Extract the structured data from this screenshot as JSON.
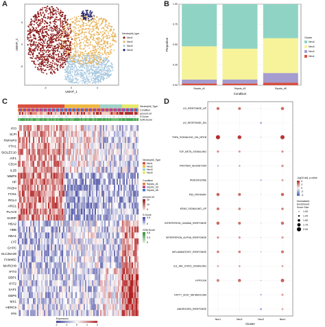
{
  "panels": {
    "a": {
      "label": "A",
      "xlabel": "UMAP_1",
      "ylabel": "UMAP_2",
      "xticks": [
        "-4",
        "0",
        "4"
      ],
      "yticks": [
        "5",
        "0",
        "-5"
      ],
      "legend_title": "Neutrophil_type",
      "legend": [
        {
          "name": "Neu1",
          "color": "#8b1a1a"
        },
        {
          "name": "Neu2",
          "color": "#e8b35a"
        },
        {
          "name": "Neu3",
          "color": "#a9c9e0"
        },
        {
          "name": "Neu4",
          "color": "#1a1a6b"
        }
      ]
    },
    "b": {
      "label": "B",
      "xlabel": "Condition",
      "ylabel": "Proportion",
      "legend_title": "Cluster",
      "chart_data": {
        "type": "bar",
        "stacked": true,
        "categories": [
          "Sepsis_d1",
          "Sepsis_d3",
          "Sepsis_d5"
        ],
        "yticks": [
          "0.00",
          "0.25",
          "0.50",
          "0.75",
          "1.00"
        ],
        "ylim": [
          0,
          1
        ],
        "series": [
          {
            "name": "Neu1",
            "color": "#d94f3d",
            "values": [
              0.02,
              0.02,
              0.03
            ]
          },
          {
            "name": "Neu2",
            "color": "#a59ccf",
            "values": [
              0.05,
              0.05,
              0.12
            ]
          },
          {
            "name": "Neu3",
            "color": "#f7f39a",
            "values": [
              0.41,
              0.38,
              0.43
            ]
          },
          {
            "name": "Neu4",
            "color": "#8fd3c4",
            "values": [
              0.52,
              0.55,
              0.42
            ]
          }
        ]
      }
    },
    "c": {
      "label": "C",
      "annotation_rows": [
        "Neutrophil_Type",
        "Condition",
        "percent.mt",
        "S.Score",
        "G2M.Score"
      ],
      "genes": [
        "IFI3",
        "SLPI",
        "TNFAIP3",
        "FTH1",
        "SIGLEC10",
        "AIF1",
        "CD14",
        "IL1B",
        "MMP9",
        "HP",
        "PADI4",
        "FCN1",
        "RGL4",
        "ARG1",
        "PLAC8",
        "S100P",
        "HBA2",
        "HBB",
        "HBA1",
        "LYZ",
        "GYPC",
        "SLC25A39",
        "FAM46C",
        "MARCH8",
        "IFIT3",
        "GBP1",
        "IFIT2",
        "XAF1",
        "GBP5",
        "MX1",
        "HERC5",
        "IFI6"
      ],
      "legend": {
        "neutrophil_title": "Neutrophil_Type",
        "neutrophil_items": [
          "Neu1",
          "Neu2",
          "Neu3",
          "Neu4"
        ],
        "condition_title": "Condition",
        "condition_items": [
          "Sepsis_d1",
          "Sepsis_d3",
          "Sepsis_d5"
        ],
        "pmt_title": "percent.mt",
        "pmt_ticks": [
          "20",
          "10",
          "0"
        ],
        "s_title": "S.Score",
        "s_ticks": [
          "0.5",
          "0"
        ],
        "g2m_title": "G2M.Score",
        "g2m_ticks": [
          "0.6",
          "0.3",
          "0"
        ]
      },
      "expression_label": "Expression",
      "expression_ticks": [
        "-2",
        "-1",
        "0",
        "1",
        "2"
      ]
    },
    "d": {
      "label": "D",
      "xlabel": "Cluster",
      "clusters": [
        "Neu1",
        "Neu2",
        "Neu3",
        "Neu4"
      ],
      "pathways": [
        "UV_RESPONSE_UP",
        "UV_RESPONSE_DN",
        "TNFA_SIGNALING_VIA_NFKB",
        "TGF_BETA_SIGNALING",
        "PROTEIN_SECRETION",
        "PEROXISOME",
        "P53_PATHWAY",
        "KRAS_SIGNALING_UP",
        "INTERFERON_GAMMA_RESPONSE",
        "INTERFERON_ALPHA_RESPONSE",
        "INFLAMMATORY_RESPONSE",
        "IL6_JAK_STAT3_SIGNALING",
        "HYPOXIA",
        "FATTY_ACID_METABOLISM",
        "ANDROGEN_RESPONSE"
      ],
      "legend_color_title": "-log10 Adj. p-value",
      "legend_color_ticks": [
        "4",
        "2",
        "0",
        "-2",
        "-4"
      ],
      "legend_size_title": "Normalized Enrichment Score Size",
      "legend_size_items": [
        "1.00",
        "1.25",
        "1.50",
        "1.75",
        "2.00"
      ],
      "chart_data": {
        "type": "scatter",
        "note_dims": "rows=pathways, cols=clusters",
        "values": [
          [
            2.5,
            2.2,
            0.4,
            2.4
          ],
          [
            0.0,
            0.0,
            -1.5,
            0.0
          ],
          [
            3.8,
            3.5,
            0.5,
            3.6
          ],
          [
            1.8,
            1.4,
            0.0,
            1.7
          ],
          [
            -1.5,
            1.2,
            0.3,
            1.4
          ],
          [
            0.0,
            0.0,
            -1.4,
            1.2
          ],
          [
            2.6,
            2.4,
            0.6,
            2.5
          ],
          [
            2.2,
            2.0,
            0.4,
            2.0
          ],
          [
            2.5,
            2.3,
            -0.6,
            2.3
          ],
          [
            1.7,
            1.6,
            -0.4,
            1.5
          ],
          [
            2.0,
            2.0,
            -0.8,
            2.2
          ],
          [
            1.4,
            1.5,
            0.2,
            1.5
          ],
          [
            1.9,
            2.4,
            -0.7,
            2.6
          ],
          [
            0.0,
            0.0,
            -1.3,
            1.3
          ],
          [
            0.0,
            0.0,
            -1.6,
            1.3
          ]
        ],
        "sizes": [
          [
            1.6,
            1.6,
            1.0,
            1.7
          ],
          [
            0.0,
            0.0,
            1.3,
            0.0
          ],
          [
            2.0,
            1.9,
            1.1,
            2.0
          ],
          [
            1.4,
            1.4,
            0.0,
            1.4
          ],
          [
            1.2,
            1.3,
            1.0,
            1.5
          ],
          [
            0.0,
            0.0,
            1.2,
            1.4
          ],
          [
            1.7,
            1.6,
            1.0,
            1.7
          ],
          [
            1.6,
            1.5,
            1.0,
            1.5
          ],
          [
            1.7,
            1.6,
            1.0,
            1.7
          ],
          [
            1.4,
            1.4,
            1.0,
            1.4
          ],
          [
            1.5,
            1.5,
            1.1,
            1.6
          ],
          [
            1.3,
            1.3,
            1.0,
            1.3
          ],
          [
            1.6,
            1.7,
            1.1,
            1.8
          ],
          [
            0.0,
            0.0,
            1.2,
            1.4
          ],
          [
            0.0,
            0.0,
            1.3,
            1.3
          ]
        ]
      }
    }
  }
}
